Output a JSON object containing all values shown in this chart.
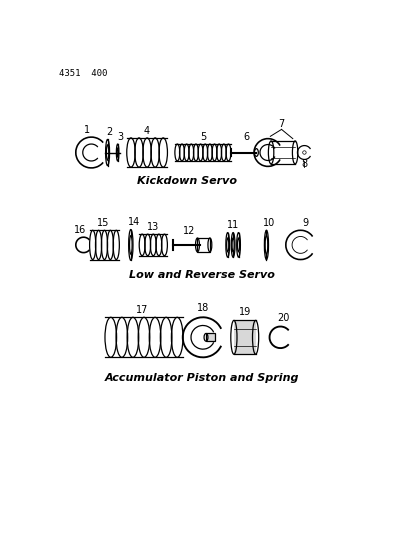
{
  "page_num": "4351  400",
  "background_color": "#ffffff",
  "line_color": "#000000",
  "title_kickdown": "Kickdown Servo",
  "title_low_reverse": "Low and Reverse Servo",
  "title_accumulator": "Accumulator Piston and Spring",
  "title_fontsize": 8,
  "label_fontsize": 7,
  "figsize": [
    4.08,
    5.33
  ],
  "dpi": 100
}
